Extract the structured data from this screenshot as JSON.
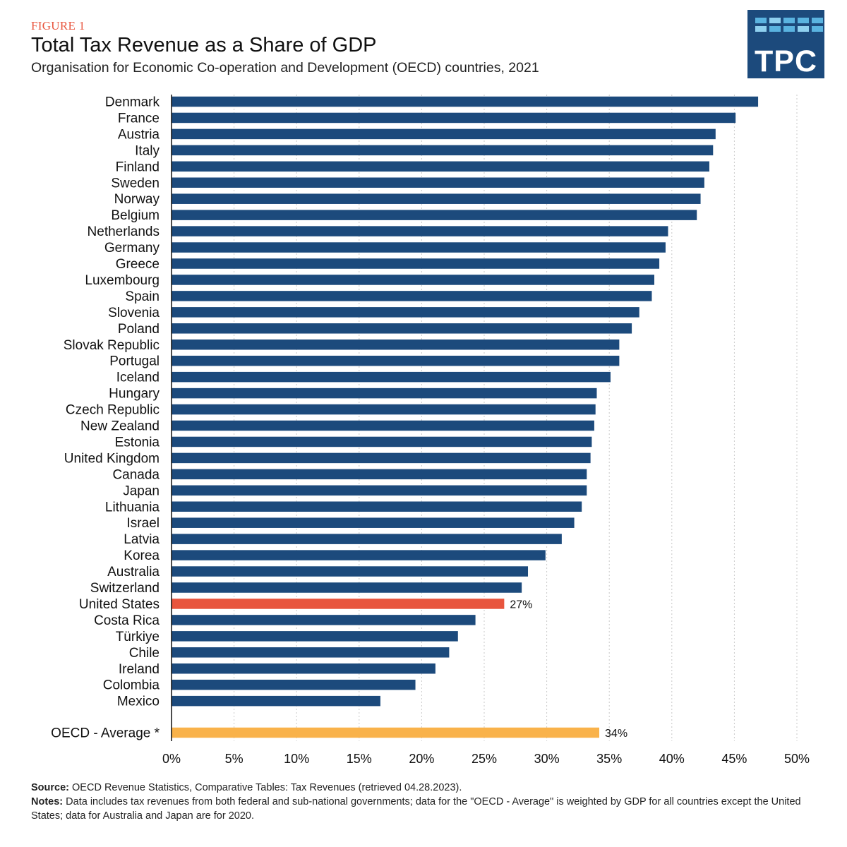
{
  "header": {
    "figure_label": "FIGURE 1",
    "title": "Total Tax Revenue as a Share of GDP",
    "subtitle": "Organisation for Economic Co-operation and Development (OECD) countries, 2021"
  },
  "logo": {
    "text": "TPC"
  },
  "colors": {
    "bar": "#1c4a7c",
    "highlight": "#e8553e",
    "average": "#f9b24a",
    "grid": "#c9c9c9"
  },
  "chart_data": {
    "type": "bar",
    "orientation": "horizontal",
    "categories": [
      "Denmark",
      "France",
      "Austria",
      "Italy",
      "Finland",
      "Sweden",
      "Norway",
      "Belgium",
      "Netherlands",
      "Germany",
      "Greece",
      "Luxembourg",
      "Spain",
      "Slovenia",
      "Poland",
      "Slovak Republic",
      "Portugal",
      "Iceland",
      "Hungary",
      "Czech Republic",
      "New Zealand",
      "Estonia",
      "United Kingdom",
      "Canada",
      "Japan",
      "Lithuania",
      "Israel",
      "Latvia",
      "Korea",
      "Australia",
      "Switzerland",
      "United States",
      "Costa Rica",
      "Türkiye",
      "Chile",
      "Ireland",
      "Colombia",
      "Mexico"
    ],
    "values": [
      46.9,
      45.1,
      43.5,
      43.3,
      43.0,
      42.6,
      42.3,
      42.0,
      39.7,
      39.5,
      39.0,
      38.6,
      38.4,
      37.4,
      36.8,
      35.8,
      35.8,
      35.1,
      34.0,
      33.9,
      33.8,
      33.6,
      33.5,
      33.2,
      33.2,
      32.8,
      32.2,
      31.2,
      29.9,
      28.5,
      28.0,
      26.6,
      24.3,
      22.9,
      22.2,
      21.1,
      19.5,
      16.7
    ],
    "highlight": {
      "category": "United States",
      "label": "27%"
    },
    "average": {
      "label": "OECD - Average *",
      "value": 34.2,
      "value_label": "34%"
    },
    "x_ticks": [
      "0%",
      "5%",
      "10%",
      "15%",
      "20%",
      "25%",
      "30%",
      "35%",
      "40%",
      "45%",
      "50%"
    ],
    "xlim": [
      0,
      50
    ],
    "grid": "vertical dotted"
  },
  "footer": {
    "source_label": "Source:",
    "source_text": "OECD Revenue Statistics, Comparative Tables: Tax Revenues (retrieved 04.28.2023).",
    "notes_label": "Notes:",
    "notes_text": "Data includes tax revenues from both federal and sub-national governments; data for the \"OECD - Average\" is weighted by GDP for all countries except the United States; data for Australia and Japan are for 2020."
  }
}
